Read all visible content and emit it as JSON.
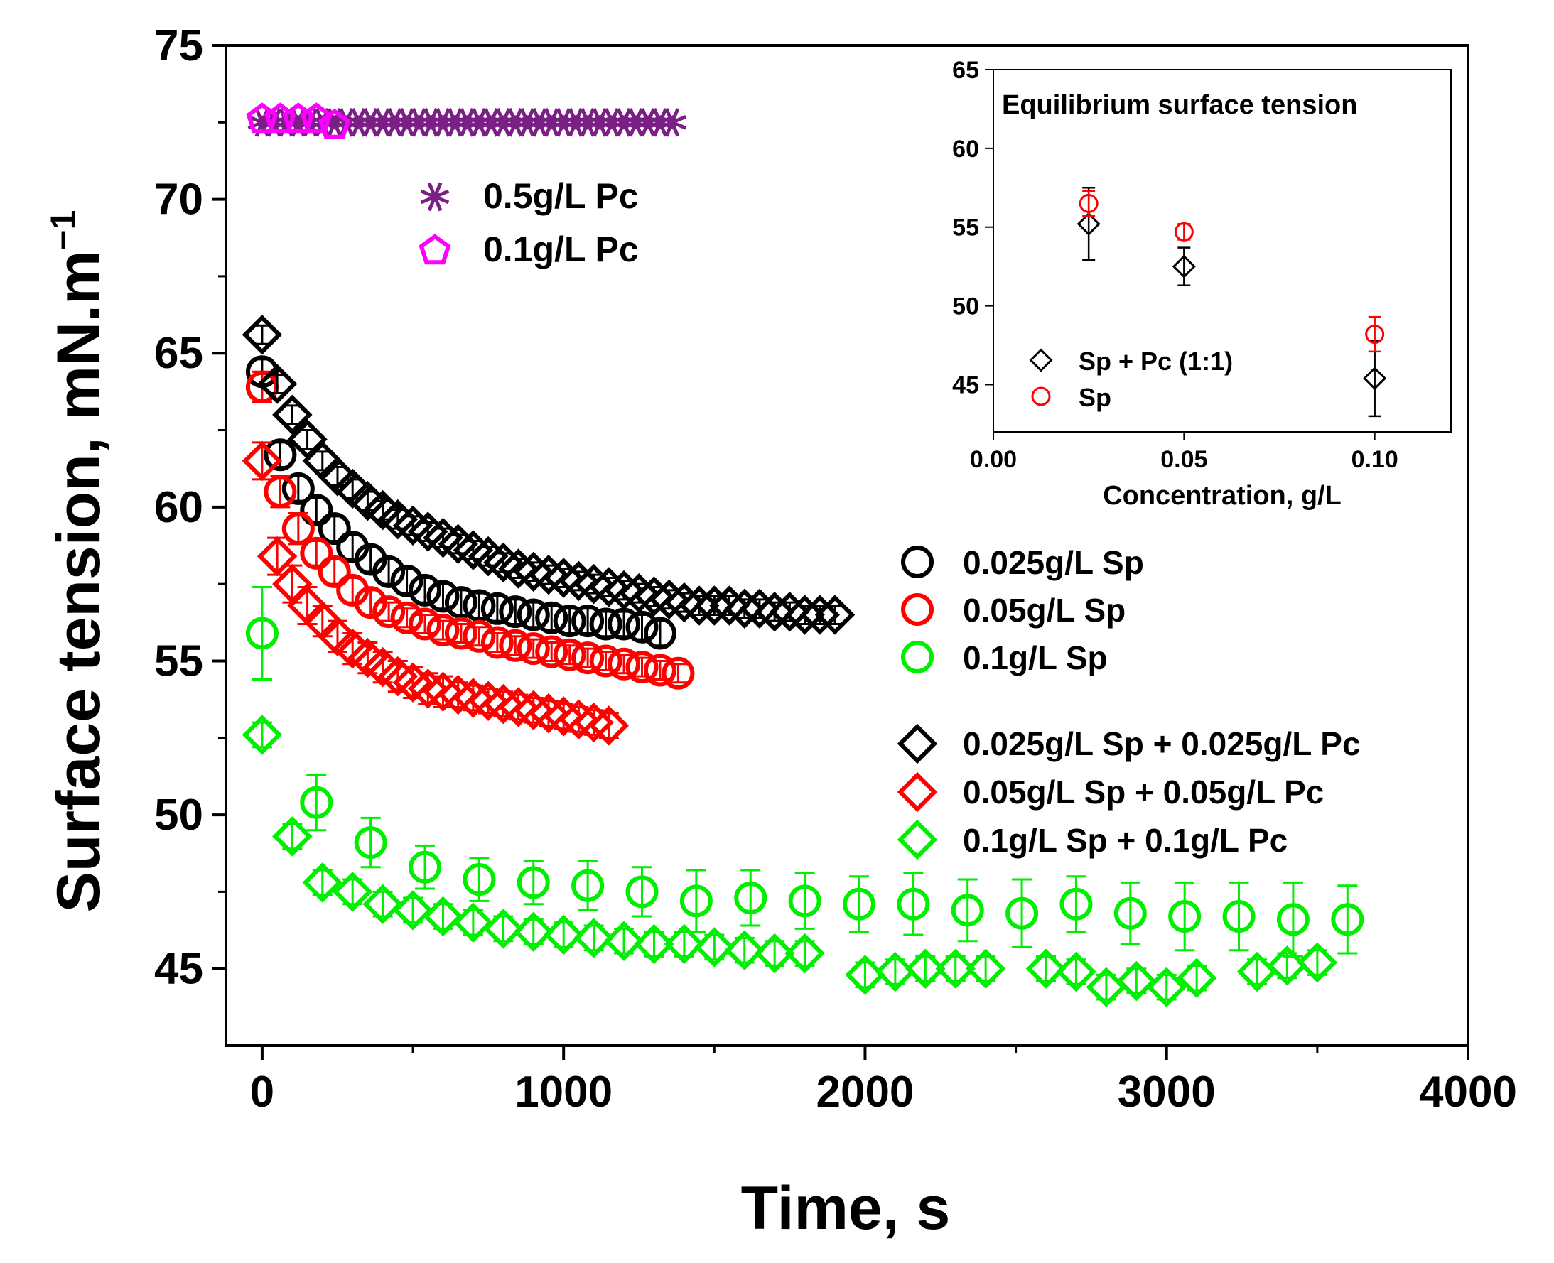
{
  "chart_data": [
    {
      "type": "scatter",
      "title": "",
      "xlabel": "Time, s",
      "ylabel": "Surface tension, mN.m",
      "ylabel_sup": "−1",
      "xlim": [
        -120,
        4000
      ],
      "ylim": [
        42.5,
        75
      ],
      "xticks": [
        0,
        1000,
        2000,
        3000,
        4000
      ],
      "yticks": [
        45,
        50,
        55,
        60,
        65,
        70,
        75
      ],
      "series": [
        {
          "name": "0.5g/L Pc",
          "marker": "asterisk",
          "color": "#7b1f86",
          "x": [
            0,
            40,
            80,
            120,
            160,
            200,
            240,
            280,
            320,
            360,
            400,
            440,
            480,
            520,
            560,
            600,
            640,
            680,
            720,
            760,
            800,
            840,
            880,
            920,
            960,
            1000,
            1040,
            1080,
            1120,
            1160,
            1200,
            1240,
            1280,
            1320,
            1360
          ],
          "y": [
            72.5,
            72.5,
            72.5,
            72.5,
            72.5,
            72.5,
            72.5,
            72.5,
            72.5,
            72.5,
            72.5,
            72.5,
            72.5,
            72.5,
            72.5,
            72.5,
            72.5,
            72.5,
            72.5,
            72.5,
            72.5,
            72.5,
            72.5,
            72.5,
            72.5,
            72.5,
            72.5,
            72.5,
            72.5,
            72.5,
            72.5,
            72.5,
            72.5,
            72.5,
            72.5
          ]
        },
        {
          "name": "0.1g/L Pc",
          "marker": "pentagon",
          "color": "#ff00ff",
          "x": [
            0,
            60,
            120,
            180,
            240
          ],
          "y": [
            72.6,
            72.6,
            72.6,
            72.6,
            72.4
          ]
        },
        {
          "name": "0.025g/L Sp",
          "marker": "circle",
          "color": "#000000",
          "x": [
            0,
            60,
            120,
            180,
            240,
            300,
            360,
            420,
            480,
            540,
            600,
            660,
            720,
            780,
            840,
            900,
            960,
            1020,
            1080,
            1140,
            1200,
            1260,
            1320
          ],
          "y": [
            64.4,
            61.7,
            60.6,
            59.9,
            59.3,
            58.7,
            58.3,
            57.9,
            57.6,
            57.3,
            57.1,
            56.9,
            56.8,
            56.7,
            56.6,
            56.5,
            56.4,
            56.3,
            56.3,
            56.2,
            56.2,
            56.1,
            55.9
          ],
          "err": [
            0.4,
            0.4,
            0.4,
            0.4,
            0.4,
            0.4,
            0.4,
            0.4,
            0.4,
            0.4,
            0.4,
            0.4,
            0.4,
            0.4,
            0.4,
            0.4,
            0.4,
            0.4,
            0.4,
            0.4,
            0.4,
            0.4,
            0.4
          ]
        },
        {
          "name": "0.05g/L Sp",
          "marker": "circle",
          "color": "#ff0000",
          "x": [
            0,
            60,
            120,
            180,
            240,
            300,
            360,
            420,
            480,
            540,
            600,
            660,
            720,
            780,
            840,
            900,
            960,
            1020,
            1080,
            1140,
            1200,
            1260,
            1320,
            1380
          ],
          "y": [
            63.9,
            60.5,
            59.3,
            58.5,
            57.9,
            57.3,
            56.9,
            56.6,
            56.4,
            56.2,
            56.0,
            55.9,
            55.8,
            55.6,
            55.5,
            55.4,
            55.3,
            55.2,
            55.1,
            55.0,
            54.9,
            54.8,
            54.7,
            54.6
          ],
          "err": [
            0.5,
            0.5,
            0.5,
            0.4,
            0.4,
            0.4,
            0.4,
            0.3,
            0.3,
            0.3,
            0.3,
            0.3,
            0.3,
            0.3,
            0.3,
            0.3,
            0.3,
            0.3,
            0.3,
            0.3,
            0.3,
            0.3,
            0.3,
            0.3
          ]
        },
        {
          "name": "0.1g/L Sp",
          "marker": "circle",
          "color": "#00ee00",
          "x": [
            0,
            180,
            360,
            540,
            720,
            900,
            1080,
            1260,
            1440,
            1620,
            1800,
            1980,
            2160,
            2340,
            2520,
            2700,
            2880,
            3060,
            3240,
            3420,
            3600
          ],
          "y": [
            55.9,
            50.4,
            49.1,
            48.3,
            47.9,
            47.8,
            47.7,
            47.5,
            47.2,
            47.3,
            47.2,
            47.1,
            47.1,
            46.9,
            46.8,
            47.1,
            46.8,
            46.7,
            46.7,
            46.6,
            46.6
          ],
          "err": [
            1.5,
            0.9,
            0.8,
            0.7,
            0.7,
            0.7,
            0.8,
            0.8,
            1.0,
            0.9,
            0.9,
            0.9,
            1.0,
            1.0,
            1.1,
            0.9,
            1.0,
            1.1,
            1.1,
            1.2,
            1.1
          ]
        },
        {
          "name": "0.025g/L Sp + 0.025g/L Pc",
          "marker": "diamond",
          "color": "#000000",
          "x": [
            0,
            50,
            100,
            150,
            200,
            250,
            300,
            350,
            400,
            450,
            500,
            550,
            600,
            650,
            700,
            750,
            800,
            850,
            900,
            950,
            1000,
            1050,
            1100,
            1150,
            1200,
            1250,
            1300,
            1350,
            1400,
            1450,
            1500,
            1550,
            1600,
            1650,
            1700,
            1750,
            1800,
            1850,
            1900
          ],
          "y": [
            65.6,
            64.0,
            63.0,
            62.2,
            61.5,
            61.0,
            60.6,
            60.2,
            59.9,
            59.6,
            59.4,
            59.2,
            59.0,
            58.8,
            58.6,
            58.4,
            58.2,
            58.0,
            57.9,
            57.8,
            57.7,
            57.6,
            57.5,
            57.4,
            57.3,
            57.2,
            57.1,
            57.0,
            56.9,
            56.8,
            56.8,
            56.8,
            56.7,
            56.7,
            56.6,
            56.6,
            56.5,
            56.5,
            56.5
          ],
          "err": [
            0.3,
            0.3,
            0.3,
            0.3,
            0.3,
            0.3,
            0.3,
            0.3,
            0.3,
            0.3,
            0.3,
            0.3,
            0.3,
            0.3,
            0.3,
            0.3,
            0.3,
            0.3,
            0.3,
            0.3,
            0.3,
            0.3,
            0.3,
            0.3,
            0.3,
            0.3,
            0.3,
            0.3,
            0.3,
            0.3,
            0.3,
            0.3,
            0.3,
            0.3,
            0.3,
            0.3,
            0.3,
            0.3,
            0.3
          ]
        },
        {
          "name": "0.05g/L Sp + 0.05g/L Pc",
          "marker": "diamond",
          "color": "#ff0000",
          "x": [
            0,
            50,
            100,
            150,
            200,
            250,
            300,
            350,
            400,
            450,
            500,
            550,
            600,
            650,
            700,
            750,
            800,
            850,
            900,
            950,
            1000,
            1050,
            1100,
            1150
          ],
          "y": [
            61.5,
            58.4,
            57.5,
            56.8,
            56.3,
            55.8,
            55.4,
            55.1,
            54.8,
            54.5,
            54.3,
            54.1,
            54.0,
            53.9,
            53.8,
            53.7,
            53.6,
            53.5,
            53.4,
            53.3,
            53.2,
            53.1,
            53.0,
            52.9
          ],
          "err": [
            0.6,
            0.6,
            0.6,
            0.6,
            0.5,
            0.5,
            0.5,
            0.5,
            0.5,
            0.5,
            0.5,
            0.5,
            0.5,
            0.4,
            0.4,
            0.4,
            0.4,
            0.4,
            0.4,
            0.4,
            0.4,
            0.4,
            0.4,
            0.4
          ]
        },
        {
          "name": "0.1g/L Sp + 0.1g/L Pc",
          "marker": "diamond",
          "color": "#00ee00",
          "x": [
            0,
            100,
            200,
            300,
            400,
            500,
            600,
            700,
            800,
            900,
            1000,
            1100,
            1200,
            1300,
            1400,
            1500,
            1600,
            1700,
            1800,
            2000,
            2100,
            2200,
            2300,
            2400,
            2600,
            2700,
            2800,
            2900,
            3000,
            3100,
            3300,
            3400,
            3500
          ],
          "y": [
            52.6,
            49.3,
            47.8,
            47.5,
            47.1,
            46.9,
            46.7,
            46.5,
            46.3,
            46.2,
            46.1,
            46.0,
            45.9,
            45.8,
            45.8,
            45.7,
            45.6,
            45.5,
            45.5,
            44.8,
            44.9,
            45.0,
            45.0,
            45.0,
            45.0,
            44.9,
            44.4,
            44.6,
            44.4,
            44.7,
            44.9,
            45.1,
            45.2
          ],
          "err": [
            0.4,
            0.4,
            0.4,
            0.4,
            0.4,
            0.4,
            0.4,
            0.4,
            0.4,
            0.4,
            0.4,
            0.4,
            0.4,
            0.4,
            0.4,
            0.4,
            0.4,
            0.4,
            0.4,
            0.4,
            0.4,
            0.4,
            0.4,
            0.4,
            0.4,
            0.4,
            0.4,
            0.4,
            0.4,
            0.4,
            0.4,
            0.4,
            0.4
          ]
        }
      ],
      "legend_text": {
        "pc": [
          "0.5g/L Pc",
          "0.1g/L Pc"
        ],
        "sp": [
          "0.025g/L Sp",
          "0.05g/L Sp",
          "0.1g/L Sp"
        ],
        "mix": [
          "0.025g/L Sp + 0.025g/L Pc",
          "0.05g/L Sp + 0.05g/L Pc",
          "0.1g/L Sp + 0.1g/L Pc"
        ]
      }
    },
    {
      "type": "scatter",
      "title": "Equilibrium surface tension",
      "xlabel": "Concentration, g/L",
      "ylabel": "",
      "xlim": [
        0,
        0.12
      ],
      "ylim": [
        42,
        65
      ],
      "xticks": [
        0.0,
        0.05,
        0.1
      ],
      "xticklabels": [
        "0.00",
        "0.05",
        "0.10"
      ],
      "yticks": [
        45,
        50,
        55,
        60,
        65
      ],
      "legend_position": "bottom-left",
      "series": [
        {
          "name": "Sp + Pc (1:1)",
          "marker": "diamond",
          "color": "#000000",
          "x": [
            0.025,
            0.05,
            0.1
          ],
          "y": [
            55.2,
            52.5,
            45.4
          ],
          "err": [
            2.3,
            1.2,
            2.4
          ]
        },
        {
          "name": "Sp",
          "marker": "circle",
          "color": "#ff0000",
          "x": [
            0.025,
            0.05,
            0.1
          ],
          "y": [
            56.5,
            54.7,
            48.2
          ],
          "err": [
            0.8,
            0.5,
            1.1
          ]
        }
      ]
    }
  ]
}
